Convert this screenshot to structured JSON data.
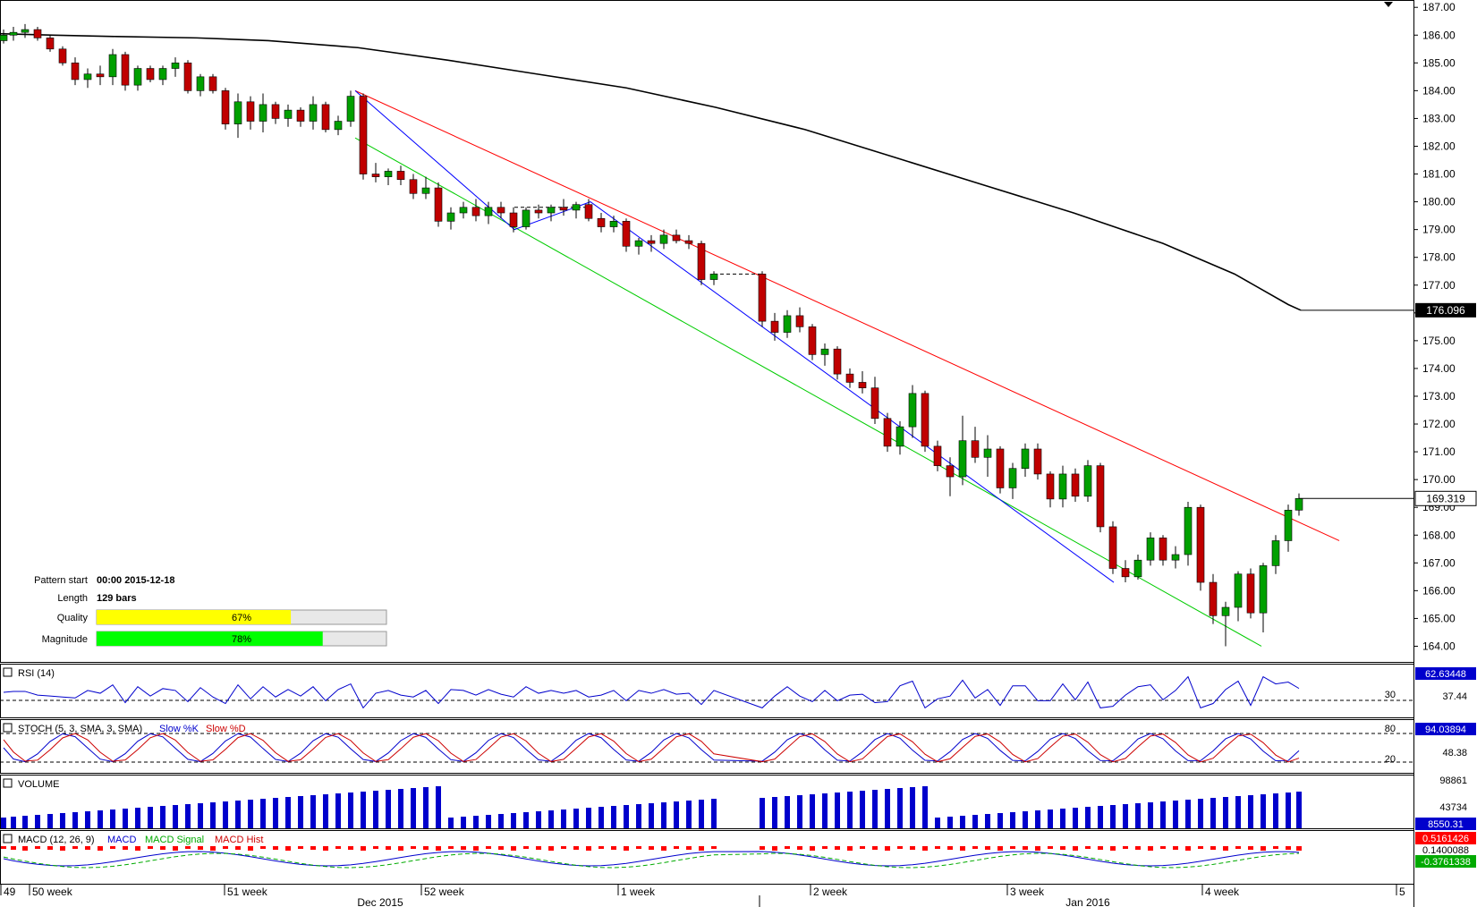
{
  "chart_data": {
    "type": "candlestick",
    "main": {
      "ylim": [
        163.5,
        187.2
      ],
      "y_ticks": [
        164,
        165,
        166,
        167,
        168,
        169,
        170,
        171,
        172,
        173,
        174,
        175,
        176,
        177,
        178,
        179,
        180,
        181,
        182,
        183,
        184,
        185,
        186,
        187
      ],
      "y_tick_labels": [
        "164.00",
        "165.00",
        "166.00",
        "167.00",
        "168.00",
        "169.00",
        "170.00",
        "171.00",
        "172.00",
        "173.00",
        "174.00",
        "175.00",
        "176.00",
        "177.00",
        "178.00",
        "179.00",
        "180.00",
        "181.00",
        "182.00",
        "183.00",
        "184.00",
        "185.00",
        "186.00",
        "187.00"
      ],
      "ma_label": "176.096",
      "price_label": "169.319",
      "ma_points": [
        [
          0,
          186.05
        ],
        [
          60,
          186.0
        ],
        [
          130,
          185.95
        ],
        [
          220,
          185.9
        ],
        [
          300,
          185.8
        ],
        [
          400,
          185.55
        ],
        [
          500,
          185.1
        ],
        [
          600,
          184.6
        ],
        [
          700,
          184.1
        ],
        [
          800,
          183.4
        ],
        [
          900,
          182.6
        ],
        [
          1000,
          181.6
        ],
        [
          1100,
          180.6
        ],
        [
          1200,
          179.6
        ],
        [
          1300,
          178.5
        ],
        [
          1380,
          177.4
        ],
        [
          1440,
          176.3
        ],
        [
          1454,
          176.096
        ]
      ],
      "channel_upper": [
        [
          397,
          184.0
        ],
        [
          1497,
          167.8
        ]
      ],
      "channel_lower": [
        [
          397,
          182.3
        ],
        [
          1410,
          164.0
        ]
      ],
      "pattern_path": [
        [
          397,
          184.0
        ],
        [
          575,
          179.0
        ],
        [
          660,
          180.0
        ],
        [
          1245,
          166.3
        ]
      ],
      "candles_ohlc_anchor": [
        [
          4,
          185.8,
          186.2,
          185.7,
          186.0
        ],
        [
          15,
          186.0,
          186.3,
          185.8,
          186.1
        ],
        [
          28,
          186.1,
          186.4,
          185.9,
          186.2
        ],
        [
          42,
          186.2,
          186.3,
          185.8,
          185.9
        ],
        [
          56,
          185.9,
          186.0,
          185.4,
          185.5
        ],
        [
          70,
          185.5,
          185.6,
          184.9,
          185.0
        ],
        [
          84,
          185.0,
          185.2,
          184.2,
          184.4
        ],
        [
          98,
          184.4,
          184.8,
          184.1,
          184.6
        ],
        [
          112,
          184.6,
          184.9,
          184.2,
          184.5
        ],
        [
          126,
          184.5,
          185.5,
          184.2,
          185.3
        ],
        [
          140,
          185.3,
          185.4,
          184.0,
          184.2
        ],
        [
          154,
          184.2,
          184.9,
          184.0,
          184.8
        ],
        [
          168,
          184.8,
          184.9,
          184.3,
          184.4
        ],
        [
          182,
          184.4,
          184.9,
          184.2,
          184.8
        ],
        [
          196,
          184.8,
          185.2,
          184.5,
          185.0
        ],
        [
          210,
          185.0,
          185.1,
          183.9,
          184.0
        ],
        [
          224,
          184.0,
          184.6,
          183.8,
          184.5
        ],
        [
          238,
          184.5,
          184.6,
          183.9,
          184.0
        ],
        [
          252,
          184.0,
          184.1,
          182.6,
          182.8
        ],
        [
          266,
          182.8,
          183.9,
          182.3,
          183.6
        ],
        [
          280,
          183.6,
          183.8,
          182.6,
          182.9
        ],
        [
          294,
          182.9,
          183.9,
          182.5,
          183.5
        ],
        [
          308,
          183.5,
          183.6,
          182.8,
          183.0
        ],
        [
          322,
          183.0,
          183.5,
          182.7,
          183.3
        ],
        [
          336,
          183.3,
          183.4,
          182.7,
          182.9
        ],
        [
          350,
          182.9,
          183.8,
          182.6,
          183.5
        ],
        [
          364,
          183.5,
          183.6,
          182.5,
          182.6
        ],
        [
          378,
          182.6,
          183.1,
          182.4,
          182.9
        ],
        [
          392,
          182.9,
          184.0,
          182.7,
          183.8
        ],
        [
          406,
          183.8,
          183.9,
          180.8,
          181.0
        ],
        [
          420,
          181.0,
          181.4,
          180.7,
          180.9
        ],
        [
          434,
          180.9,
          181.2,
          180.6,
          181.1
        ],
        [
          448,
          181.1,
          181.3,
          180.6,
          180.8
        ],
        [
          462,
          180.8,
          181.0,
          180.1,
          180.3
        ],
        [
          476,
          180.3,
          180.9,
          180.1,
          180.5
        ],
        [
          490,
          180.5,
          180.7,
          179.1,
          179.3
        ],
        [
          504,
          179.3,
          179.8,
          179.0,
          179.6
        ],
        [
          518,
          179.6,
          180.0,
          179.4,
          179.8
        ],
        [
          532,
          179.8,
          180.1,
          179.3,
          179.5
        ],
        [
          546,
          179.5,
          180.0,
          179.2,
          179.8
        ],
        [
          560,
          179.8,
          180.0,
          179.4,
          179.6
        ],
        [
          574,
          179.6,
          179.8,
          178.9,
          179.1
        ],
        [
          588,
          179.1,
          179.8,
          179.0,
          179.7
        ],
        [
          602,
          179.7,
          179.9,
          179.4,
          179.6
        ],
        [
          616,
          179.6,
          179.9,
          179.3,
          179.8
        ],
        [
          630,
          179.8,
          180.1,
          179.5,
          179.7
        ],
        [
          644,
          179.7,
          180.0,
          179.4,
          179.9
        ],
        [
          658,
          179.9,
          180.1,
          179.3,
          179.4
        ],
        [
          672,
          179.4,
          179.6,
          178.9,
          179.1
        ],
        [
          686,
          179.1,
          179.5,
          178.9,
          179.3
        ],
        [
          700,
          179.3,
          179.4,
          178.2,
          178.4
        ],
        [
          714,
          178.4,
          178.7,
          178.1,
          178.6
        ],
        [
          728,
          178.6,
          178.8,
          178.2,
          178.5
        ],
        [
          742,
          178.5,
          179.0,
          178.3,
          178.8
        ],
        [
          756,
          178.8,
          179.0,
          178.5,
          178.6
        ],
        [
          770,
          178.6,
          178.8,
          178.3,
          178.5
        ],
        [
          784,
          178.5,
          178.6,
          177.0,
          177.2
        ],
        [
          798,
          177.2,
          177.5,
          177.0,
          177.4
        ],
        [
          852,
          177.4,
          177.5,
          175.5,
          175.7
        ],
        [
          866,
          175.7,
          176.0,
          175.0,
          175.3
        ],
        [
          880,
          175.3,
          176.1,
          175.1,
          175.9
        ],
        [
          894,
          175.9,
          176.2,
          175.3,
          175.5
        ],
        [
          908,
          175.5,
          175.6,
          174.3,
          174.5
        ],
        [
          922,
          174.5,
          174.9,
          174.1,
          174.7
        ],
        [
          936,
          174.7,
          174.8,
          173.6,
          173.8
        ],
        [
          950,
          173.8,
          174.0,
          173.3,
          173.5
        ],
        [
          964,
          173.5,
          173.9,
          173.1,
          173.3
        ],
        [
          978,
          173.3,
          173.7,
          172.0,
          172.2
        ],
        [
          992,
          172.2,
          172.4,
          171.0,
          171.2
        ],
        [
          1006,
          171.2,
          172.1,
          170.9,
          171.9
        ],
        [
          1020,
          171.9,
          173.4,
          171.5,
          173.1
        ],
        [
          1034,
          173.1,
          173.2,
          171.0,
          171.2
        ],
        [
          1048,
          171.2,
          171.4,
          170.3,
          170.5
        ],
        [
          1062,
          170.5,
          170.8,
          169.4,
          170.1
        ],
        [
          1076,
          170.1,
          172.3,
          169.8,
          171.4
        ],
        [
          1090,
          171.4,
          171.9,
          170.6,
          170.8
        ],
        [
          1104,
          170.8,
          171.6,
          170.1,
          171.1
        ],
        [
          1118,
          171.1,
          171.2,
          169.5,
          169.7
        ],
        [
          1132,
          169.7,
          170.6,
          169.3,
          170.4
        ],
        [
          1146,
          170.4,
          171.3,
          170.1,
          171.1
        ],
        [
          1160,
          171.1,
          171.3,
          170.0,
          170.2
        ],
        [
          1174,
          170.2,
          170.3,
          169.0,
          169.3
        ],
        [
          1188,
          169.3,
          170.5,
          169.0,
          170.2
        ],
        [
          1202,
          170.2,
          170.4,
          169.2,
          169.4
        ],
        [
          1216,
          169.4,
          170.7,
          169.2,
          170.5
        ],
        [
          1230,
          170.5,
          170.6,
          168.1,
          168.3
        ],
        [
          1244,
          168.3,
          168.5,
          166.6,
          166.8
        ],
        [
          1258,
          166.8,
          167.1,
          166.3,
          166.5
        ],
        [
          1272,
          166.5,
          167.3,
          166.4,
          167.1
        ],
        [
          1286,
          167.1,
          168.1,
          166.9,
          167.9
        ],
        [
          1300,
          167.9,
          168.0,
          166.9,
          167.1
        ],
        [
          1314,
          167.1,
          167.6,
          166.8,
          167.3
        ],
        [
          1328,
          167.3,
          169.2,
          166.9,
          169.0
        ],
        [
          1342,
          169.0,
          169.1,
          166.0,
          166.3
        ],
        [
          1356,
          166.3,
          166.6,
          164.8,
          165.1
        ],
        [
          1370,
          165.1,
          165.6,
          164.0,
          165.4
        ],
        [
          1384,
          165.4,
          166.7,
          164.9,
          166.6
        ],
        [
          1398,
          166.6,
          166.8,
          165.0,
          165.2
        ],
        [
          1412,
          165.2,
          167.0,
          164.5,
          166.9
        ],
        [
          1426,
          166.9,
          168.0,
          166.6,
          167.8
        ],
        [
          1440,
          167.8,
          169.1,
          167.4,
          168.9
        ],
        [
          1452,
          168.9,
          169.5,
          168.7,
          169.319
        ]
      ]
    },
    "rsi": {
      "title": "RSI (14)",
      "value_label": "62.63448",
      "level_label": "30",
      "mid_label": "37.44"
    },
    "stoch": {
      "title": "STOCH (5, 3, SMA, 3, SMA)",
      "k_label": "Slow %K",
      "d_label": "Slow %D",
      "value_label": "94.03894",
      "levels": [
        "80",
        "48.38",
        "20"
      ]
    },
    "volume": {
      "title": "VOLUME",
      "labels": [
        "98861",
        "43734",
        "8550.31"
      ]
    },
    "macd": {
      "title": "MACD (12, 26, 9)",
      "macd_label": "MACD",
      "signal_label": "MACD Signal",
      "hist_label": "MACD Hist",
      "values": [
        "0.5161426",
        "0.1400088",
        "-0.3761338"
      ]
    },
    "x_labels": [
      "49",
      "50 week",
      "51 week",
      "52 week",
      "1 week",
      "2 week",
      "3 week",
      "4 week",
      "5"
    ],
    "month_labels": [
      "Dec 2015",
      "Jan 2016"
    ],
    "pattern_info": {
      "start_label": "Pattern start",
      "start_value": "00:00 2015-12-18",
      "length_label": "Length",
      "length_value": "129 bars",
      "quality_label": "Quality",
      "quality_value": "67%",
      "quality": 0.67,
      "magnitude_label": "Magnitude",
      "magnitude_value": "78%",
      "magnitude": 0.78
    },
    "colors": {
      "up": "#00a000",
      "down": "#c00000",
      "channel_upper": "#ff0000",
      "channel_lower": "#00cc00",
      "pattern": "#0000ff",
      "ma": "#000000",
      "volume": "#0000cc",
      "quality_bar": "#ffff00",
      "magnitude_bar": "#00ff00"
    }
  }
}
